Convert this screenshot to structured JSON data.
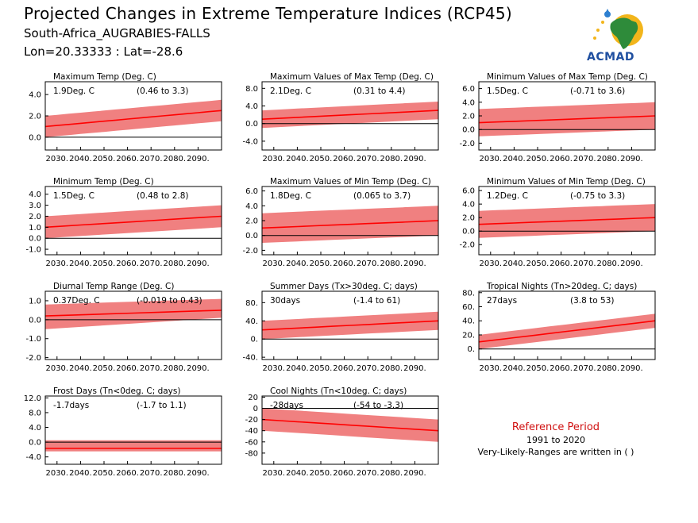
{
  "header": {
    "title": "Projected Changes in Extreme Temperature Indices (RCP45)",
    "location": "South-Africa_AUGRABIES-FALLS",
    "coords": "Lon=20.33333 : Lat=-28.6"
  },
  "logo": {
    "text": "ACMAD",
    "icon": "africa-map-logo-icon"
  },
  "reference": {
    "title": "Reference Period",
    "years": "1991 to 2020",
    "note": "Very-Likely-Ranges are written in ( )"
  },
  "colors": {
    "band": "#f08080",
    "line": "#ff0000",
    "zero": "#000000"
  },
  "chart_data": [
    {
      "type": "area",
      "title": "Maximum Temp (Deg. C)",
      "stat": "1.9Deg. C",
      "range": "(0.46 to 3.3)",
      "xlim": [
        2025,
        2100
      ],
      "ylim": [
        -1.2,
        5.2
      ],
      "yticks": [
        -0.0,
        2.0,
        4.0
      ],
      "yticklabels": [
        "0.0",
        "2.0",
        "4.0"
      ],
      "xticklabels": [
        "2030.",
        "2040.",
        "2050.",
        "2060.",
        "2070.",
        "2080.",
        "2090."
      ],
      "series": [
        {
          "start": 2006,
          "mean": [
            1.0,
            1.1,
            1.2,
            1.3,
            1.4,
            1.5,
            1.6,
            1.7,
            1.8,
            1.9,
            2.0,
            2.1,
            2.2,
            2.3,
            2.4,
            2.5
          ],
          "low": [
            0.0,
            0.1,
            0.2,
            0.3,
            0.4,
            0.5,
            0.6,
            0.7,
            0.8,
            0.9,
            1.0,
            1.1,
            1.2,
            1.3,
            1.4,
            1.5
          ],
          "high": [
            2.0,
            2.1,
            2.2,
            2.3,
            2.4,
            2.5,
            2.6,
            2.7,
            2.8,
            2.9,
            3.0,
            3.1,
            3.2,
            3.3,
            3.4,
            3.5
          ]
        }
      ]
    },
    {
      "type": "area",
      "title": "Maximum Values of Max Temp (Deg. C)",
      "stat": "2.1Deg. C",
      "range": "(0.31 to 4.4)",
      "xlim": [
        2025,
        2100
      ],
      "ylim": [
        -6.0,
        9.5
      ],
      "yticks": [
        -4.0,
        0.0,
        4.0,
        8.0
      ],
      "yticklabels": [
        "-4.0",
        "0.0",
        "4.0",
        "8.0"
      ],
      "xticklabels": [
        "2030.",
        "2040.",
        "2050.",
        "2060.",
        "2070.",
        "2080.",
        "2090."
      ],
      "series": [
        {
          "start": 2006,
          "mean": [
            1.0,
            1.2,
            1.4,
            1.6,
            1.8,
            2.0,
            2.2,
            2.4,
            2.6,
            2.8,
            3.0
          ],
          "low": [
            -1.0,
            -0.8,
            -0.6,
            -0.4,
            -0.2,
            0.0,
            0.2,
            0.4,
            0.6,
            0.8,
            1.0
          ],
          "high": [
            3.0,
            3.2,
            3.4,
            3.6,
            3.8,
            4.0,
            4.2,
            4.4,
            4.6,
            4.8,
            5.0
          ]
        }
      ]
    },
    {
      "type": "area",
      "title": "Minimum Values of Max Temp (Deg. C)",
      "stat": "1.5Deg. C",
      "range": "(-0.71 to 3.6)",
      "xlim": [
        2025,
        2100
      ],
      "ylim": [
        -3.0,
        7.0
      ],
      "yticks": [
        -2.0,
        0.0,
        2.0,
        4.0,
        6.0
      ],
      "yticklabels": [
        "-2.0",
        "0.0",
        "2.0",
        "4.0",
        "6.0"
      ],
      "xticklabels": [
        "2030.",
        "2040.",
        "2050.",
        "2060.",
        "2070.",
        "2080.",
        "2090."
      ],
      "series": [
        {
          "start": 2006,
          "mean": [
            1.0,
            1.1,
            1.2,
            1.3,
            1.4,
            1.5,
            1.6,
            1.7,
            1.8,
            1.9,
            2.0
          ],
          "low": [
            -1.0,
            -0.9,
            -0.8,
            -0.7,
            -0.6,
            -0.5,
            -0.4,
            -0.3,
            -0.2,
            -0.1,
            0.0
          ],
          "high": [
            3.0,
            3.1,
            3.2,
            3.3,
            3.4,
            3.5,
            3.6,
            3.7,
            3.8,
            3.9,
            4.0
          ]
        }
      ]
    },
    {
      "type": "area",
      "title": "Minimum Temp (Deg. C)",
      "stat": "1.5Deg. C",
      "range": "(0.48 to 2.8)",
      "xlim": [
        2025,
        2100
      ],
      "ylim": [
        -1.5,
        4.7
      ],
      "yticks": [
        -1.0,
        0.0,
        1.0,
        2.0,
        3.0,
        4.0
      ],
      "yticklabels": [
        "-1.0",
        "0.0",
        "1.0",
        "2.0",
        "3.0",
        "4.0"
      ],
      "xticklabels": [
        "2030.",
        "2040.",
        "2050.",
        "2060.",
        "2070.",
        "2080.",
        "2090."
      ],
      "series": [
        {
          "start": 2006,
          "mean": [
            1.0,
            1.1,
            1.2,
            1.3,
            1.4,
            1.5,
            1.6,
            1.7,
            1.8,
            1.9,
            2.0
          ],
          "low": [
            0.0,
            0.1,
            0.2,
            0.3,
            0.4,
            0.5,
            0.6,
            0.7,
            0.8,
            0.9,
            1.0
          ],
          "high": [
            2.0,
            2.1,
            2.2,
            2.3,
            2.4,
            2.5,
            2.6,
            2.7,
            2.8,
            2.9,
            3.0
          ]
        }
      ]
    },
    {
      "type": "area",
      "title": "Maximum Values of Min Temp (Deg. C)",
      "stat": "1.8Deg. C",
      "range": "(0.065 to 3.7)",
      "xlim": [
        2025,
        2100
      ],
      "ylim": [
        -2.6,
        6.6
      ],
      "yticks": [
        -2.0,
        0.0,
        2.0,
        4.0,
        6.0
      ],
      "yticklabels": [
        "-2.0",
        "0.0",
        "2.0",
        "4.0",
        "6.0"
      ],
      "xticklabels": [
        "2030.",
        "2040.",
        "2050.",
        "2060.",
        "2070.",
        "2080.",
        "2090."
      ],
      "series": [
        {
          "start": 2006,
          "mean": [
            1.0,
            1.1,
            1.2,
            1.3,
            1.4,
            1.5,
            1.6,
            1.7,
            1.8,
            1.9,
            2.0
          ],
          "low": [
            -1.0,
            -0.9,
            -0.8,
            -0.7,
            -0.6,
            -0.5,
            -0.4,
            -0.3,
            -0.2,
            -0.1,
            0.0
          ],
          "high": [
            3.0,
            3.1,
            3.2,
            3.3,
            3.4,
            3.5,
            3.6,
            3.7,
            3.8,
            3.9,
            4.0
          ]
        }
      ]
    },
    {
      "type": "area",
      "title": "Minimum Values of Min Temp (Deg. C)",
      "stat": "1.2Deg. C",
      "range": "(-0.75 to 3.3)",
      "xlim": [
        2025,
        2100
      ],
      "ylim": [
        -3.5,
        6.6
      ],
      "yticks": [
        -2.0,
        0.0,
        2.0,
        4.0,
        6.0
      ],
      "yticklabels": [
        "-2.0",
        "0.0",
        "2.0",
        "4.0",
        "6.0"
      ],
      "xticklabels": [
        "2030.",
        "2040.",
        "2050.",
        "2060.",
        "2070.",
        "2080.",
        "2090."
      ],
      "series": [
        {
          "start": 2006,
          "mean": [
            1.0,
            1.1,
            1.2,
            1.3,
            1.4,
            1.5,
            1.6,
            1.7,
            1.8,
            1.9,
            2.0
          ],
          "low": [
            -1.0,
            -0.9,
            -0.8,
            -0.7,
            -0.6,
            -0.5,
            -0.4,
            -0.3,
            -0.2,
            -0.1,
            0.0
          ],
          "high": [
            3.0,
            3.1,
            3.2,
            3.3,
            3.4,
            3.5,
            3.6,
            3.7,
            3.8,
            3.9,
            4.0
          ]
        }
      ]
    },
    {
      "type": "area",
      "title": "Diurnal Temp Range (Deg. C)",
      "stat": "0.37Deg. C",
      "range": "(-0.019 to 0.43)",
      "xlim": [
        2025,
        2100
      ],
      "ylim": [
        -2.1,
        1.5
      ],
      "yticks": [
        -2.0,
        -1.0,
        0.0,
        1.0
      ],
      "yticklabels": [
        "-2.0",
        "-1.0",
        "0.0",
        "1.0"
      ],
      "xticklabels": [
        "2030.",
        "2040.",
        "2050.",
        "2060.",
        "2070.",
        "2080.",
        "2090."
      ],
      "series": [
        {
          "start": 2006,
          "mean": [
            0.2,
            0.25,
            0.3,
            0.35,
            0.4,
            0.45,
            0.5
          ],
          "low": [
            -0.5,
            -0.4,
            -0.3,
            -0.2,
            -0.1,
            0.0,
            0.1
          ],
          "high": [
            0.8,
            0.85,
            0.9,
            0.95,
            1.0,
            1.05,
            1.1
          ]
        }
      ]
    },
    {
      "type": "area",
      "title": "Summer Days (Tx>30deg. C; days)",
      "stat": "30days",
      "range": "(-1.4 to 61)",
      "xlim": [
        2025,
        2100
      ],
      "ylim": [
        -45,
        105
      ],
      "yticks": [
        -40,
        0,
        40,
        80
      ],
      "yticklabels": [
        "-40.",
        "0.",
        "40.",
        "80."
      ],
      "xticklabels": [
        "2030.",
        "2040.",
        "2050.",
        "2060.",
        "2070.",
        "2080.",
        "2090."
      ],
      "series": [
        {
          "start": 2006,
          "mean": [
            20,
            22,
            24,
            26,
            28,
            30,
            32,
            34,
            36,
            38,
            40
          ],
          "low": [
            0,
            2,
            4,
            6,
            8,
            10,
            12,
            14,
            16,
            18,
            20
          ],
          "high": [
            40,
            42,
            44,
            46,
            48,
            50,
            52,
            54,
            56,
            58,
            60
          ]
        }
      ]
    },
    {
      "type": "area",
      "title": "Tropical Nights (Tn>20deg. C; days)",
      "stat": "27days",
      "range": "(3.8 to 53)",
      "xlim": [
        2025,
        2100
      ],
      "ylim": [
        -15,
        82
      ],
      "yticks": [
        0,
        20,
        40,
        60,
        80
      ],
      "yticklabels": [
        "0.",
        "20.",
        "40.",
        "60.",
        "80."
      ],
      "xticklabels": [
        "2030.",
        "2040.",
        "2050.",
        "2060.",
        "2070.",
        "2080.",
        "2090."
      ],
      "series": [
        {
          "start": 2006,
          "mean": [
            10,
            13,
            16,
            19,
            22,
            25,
            28,
            31,
            34,
            37,
            40
          ],
          "low": [
            0,
            3,
            6,
            9,
            12,
            15,
            18,
            21,
            24,
            27,
            30
          ],
          "high": [
            20,
            23,
            26,
            29,
            32,
            35,
            38,
            41,
            44,
            47,
            50
          ]
        }
      ]
    },
    {
      "type": "area",
      "title": "Frost Days (Tn<0deg. C; days)",
      "stat": "-1.7days",
      "range": "(-1.7 to 1.1)",
      "xlim": [
        2025,
        2100
      ],
      "ylim": [
        -6.0,
        12.5
      ],
      "yticks": [
        -4.0,
        0.0,
        4.0,
        8.0,
        12.0
      ],
      "yticklabels": [
        "-4.0",
        "0.0",
        "4.0",
        "8.0",
        "12.0"
      ],
      "xticklabels": [
        "2030.",
        "2040.",
        "2050.",
        "2060.",
        "2070.",
        "2080.",
        "2090."
      ],
      "series": [
        {
          "start": 2006,
          "mean": [
            -1.7,
            -1.7,
            -1.7,
            -1.7,
            -1.7,
            -1.7,
            -1.7
          ],
          "low": [
            -2.5,
            -2.5,
            -2.5,
            -2.5,
            -2.5,
            -2.5,
            -2.5
          ],
          "high": [
            0.5,
            0.5,
            0.5,
            0.5,
            0.5,
            0.5,
            0.5
          ]
        }
      ]
    },
    {
      "type": "area",
      "title": "Cool Nights (Tn<10deg. C; days)",
      "stat": "-28days",
      "range": "(-54 to -3.3)",
      "xlim": [
        2025,
        2100
      ],
      "ylim": [
        -100,
        22
      ],
      "yticks": [
        -80,
        -60,
        -40,
        -20,
        0,
        20
      ],
      "yticklabels": [
        "-80",
        "-60",
        "-40",
        "-20",
        "0",
        "20"
      ],
      "xticklabels": [
        "2030.",
        "2040.",
        "2050.",
        "2060.",
        "2070.",
        "2080.",
        "2090."
      ],
      "series": [
        {
          "start": 2006,
          "mean": [
            -20,
            -22,
            -24,
            -26,
            -28,
            -30,
            -32,
            -34,
            -36,
            -38,
            -40
          ],
          "low": [
            -40,
            -42,
            -44,
            -46,
            -48,
            -50,
            -52,
            -54,
            -56,
            -58,
            -60
          ],
          "high": [
            0,
            -2,
            -4,
            -6,
            -8,
            -10,
            -12,
            -14,
            -16,
            -18,
            -20
          ]
        }
      ]
    }
  ]
}
